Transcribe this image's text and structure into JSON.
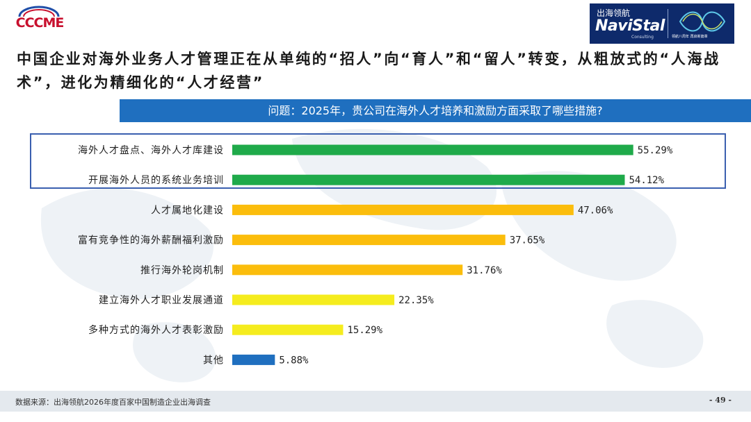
{
  "logo_left": {
    "text": "CCCME"
  },
  "logo_right": {
    "cn": "出海领航",
    "en": "NaviStal",
    "sub": "Consulting",
    "tag": "领航八周年 再启新篇章"
  },
  "headline": "中国企业对海外业务人才管理正在从单纯的“招人”向“育人”和“留人”转变，从粗放式的“人海战术”，进化为精细化的“人才经营”",
  "question": "问题：2025年，贵公司在海外人才培养和激励方面采取了哪些措施?",
  "colors": {
    "green": "#1faa4a",
    "orange": "#fbbd0c",
    "yellow": "#f5ec1e",
    "blue": "#1f6fbf",
    "highlight_border": "#3a5faf"
  },
  "chart_data": {
    "type": "bar",
    "orientation": "horizontal",
    "categories": [
      "海外人才盘点、海外人才库建设",
      "开展海外人员的系统业务培训",
      "人才属地化建设",
      "富有竞争性的海外薪酬福利激励",
      "推行海外轮岗机制",
      "建立海外人才职业发展通道",
      "多种方式的海外人才表彰激励",
      "其他"
    ],
    "values": [
      55.29,
      54.12,
      47.06,
      37.65,
      31.76,
      22.35,
      15.29,
      5.88
    ],
    "value_labels": [
      "55.29%",
      "54.12%",
      "47.06%",
      "37.65%",
      "31.76%",
      "22.35%",
      "15.29%",
      "5.88%"
    ],
    "bar_colors": [
      "green",
      "green",
      "orange",
      "orange",
      "orange",
      "yellow",
      "yellow",
      "blue"
    ],
    "unit": "%",
    "highlighted_categories": [
      0,
      1
    ]
  },
  "footer": {
    "source": "数据来源：出海领航2026年度百家中国制造企业出海调查",
    "page": "- 49 -"
  }
}
